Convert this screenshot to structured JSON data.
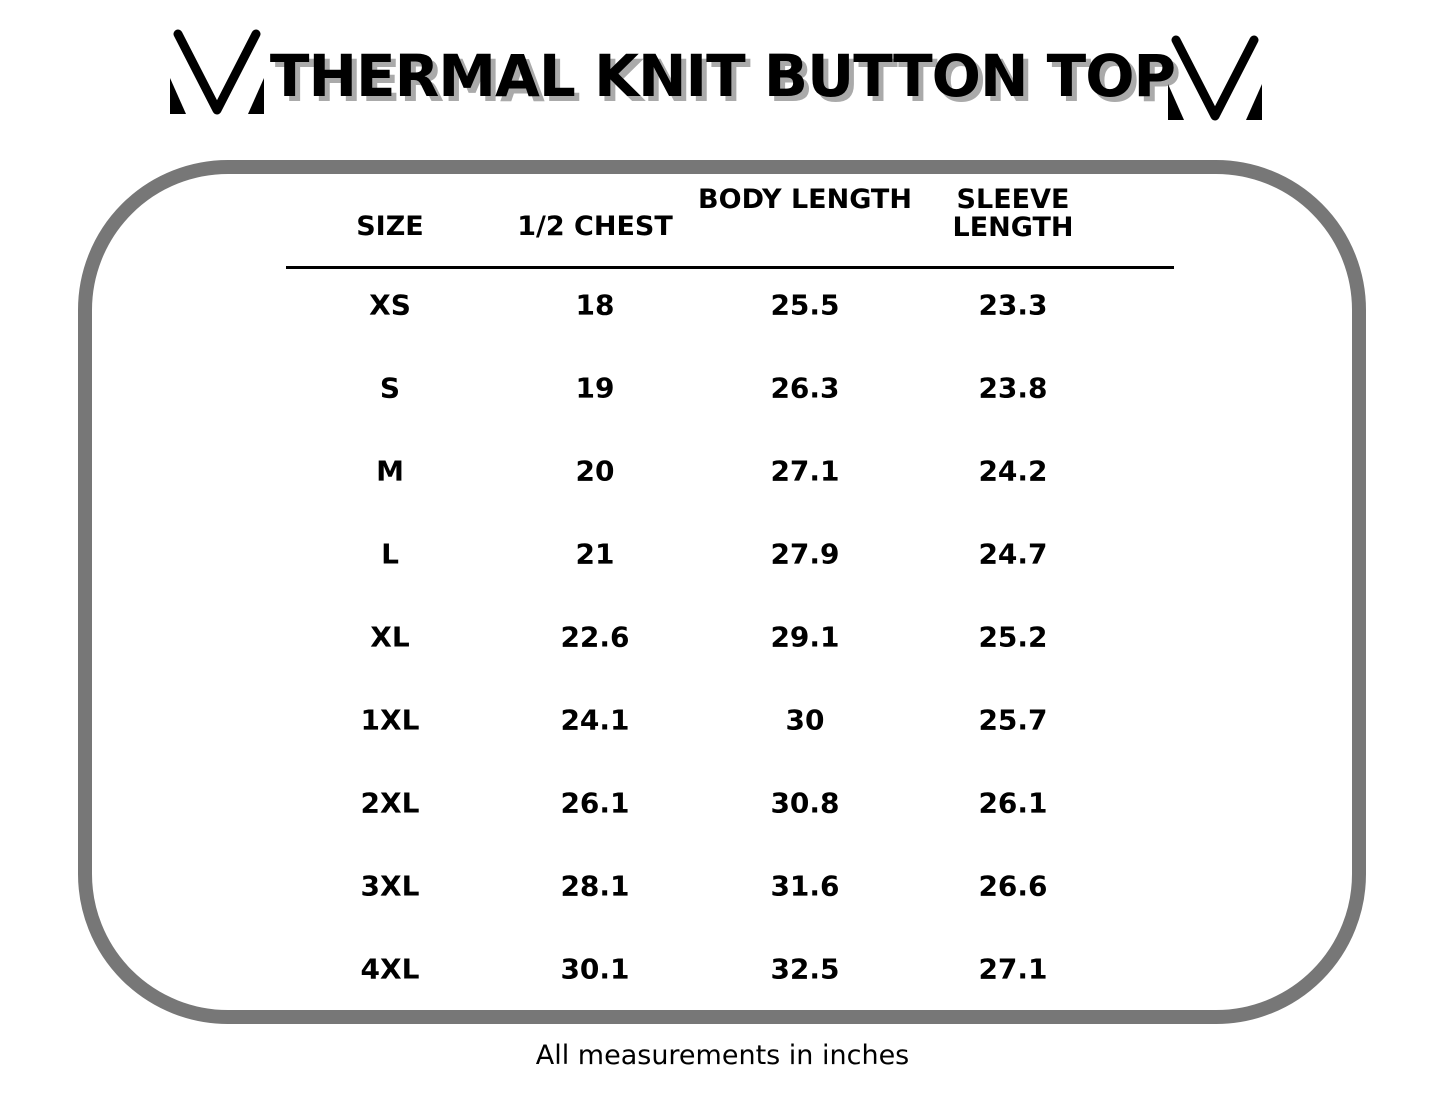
{
  "title": "THERMAL KNIT BUTTON TOP",
  "headers": [
    "SIZE",
    "1/2 CHEST",
    "BODY LENGTH",
    "SLEEVE LENGTH"
  ],
  "rows": [
    [
      "XS",
      "18",
      "25.5",
      "23.3"
    ],
    [
      "S",
      "19",
      "26.3",
      "23.8"
    ],
    [
      "M",
      "20",
      "27.1",
      "24.2"
    ],
    [
      "L",
      "21",
      "27.9",
      "24.7"
    ],
    [
      "XL",
      "22.6",
      "29.1",
      "25.2"
    ],
    [
      "1XL",
      "24.1",
      "30",
      "25.7"
    ],
    [
      "2XL",
      "26.1",
      "30.8",
      "26.1"
    ],
    [
      "3XL",
      "28.1",
      "31.6",
      "26.6"
    ],
    [
      "4XL",
      "30.1",
      "32.5",
      "27.1"
    ]
  ],
  "footnote": "All measurements in inches",
  "colors": {
    "frame": "#777777",
    "title_shadow": "#aaaaaa"
  }
}
